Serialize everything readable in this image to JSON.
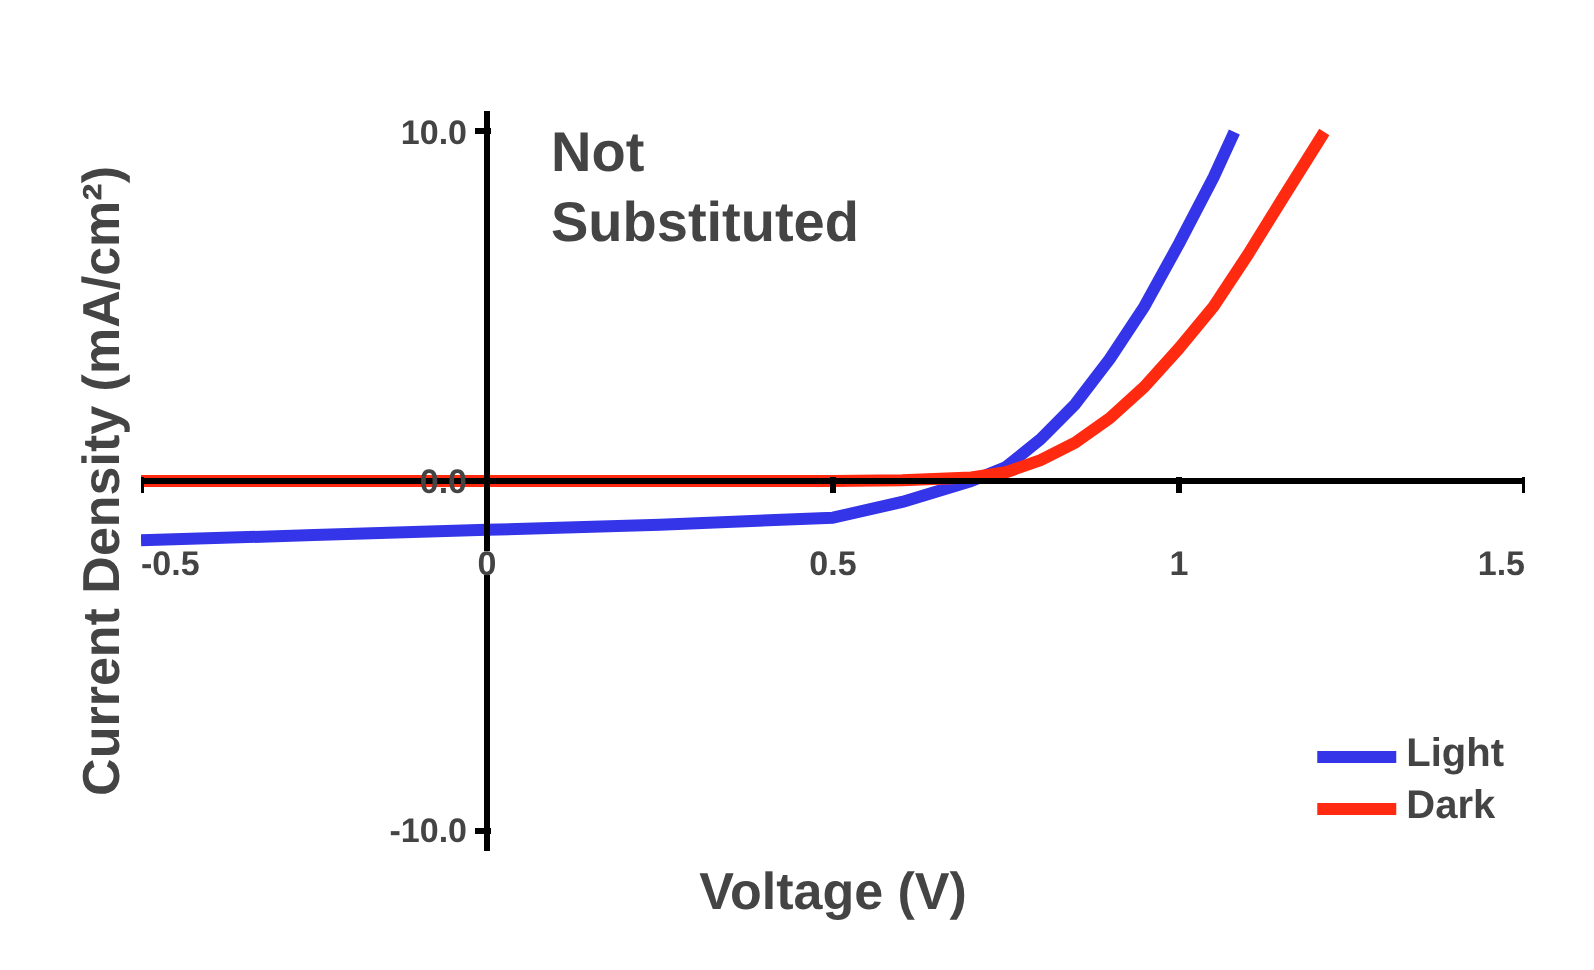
{
  "chart_data": {
    "type": "line",
    "title": "Not Substituted",
    "xlabel": "Voltage (V)",
    "ylabel": "Current Density (mA/cm²)",
    "xlim": [
      -0.5,
      1.5
    ],
    "ylim": [
      -10.6,
      10.6
    ],
    "xticks": [
      {
        "value": -0.5,
        "label": "-0.5"
      },
      0,
      0.5,
      1,
      1.5
    ],
    "yticks": [
      {
        "value": -10,
        "label": "-10.0"
      },
      {
        "value": 0,
        "label": "0.0"
      },
      {
        "value": 10,
        "label": "10.0"
      }
    ],
    "grid": false,
    "legend": "bottom right",
    "marker": "none",
    "line_style": "solid",
    "series": [
      {
        "name": "Light",
        "color": "#3434e8",
        "x": [
          -0.5,
          -0.25,
          0,
          0.25,
          0.5,
          0.6,
          0.65,
          0.7,
          0.75,
          0.8,
          0.85,
          0.9,
          0.95,
          1.0,
          1.05,
          1.08
        ],
        "values": [
          -1.7,
          -1.55,
          -1.4,
          -1.25,
          -1.05,
          -0.6,
          -0.3,
          0.0,
          0.4,
          1.2,
          2.2,
          3.5,
          5.0,
          6.8,
          8.7,
          10
        ]
      },
      {
        "name": "Dark",
        "color": "#ff2a10",
        "x": [
          -0.5,
          0,
          0.5,
          0.6,
          0.7,
          0.75,
          0.8,
          0.85,
          0.9,
          0.95,
          1.0,
          1.05,
          1.1,
          1.15,
          1.21
        ],
        "values": [
          0,
          0,
          0,
          0.02,
          0.1,
          0.25,
          0.6,
          1.1,
          1.8,
          2.7,
          3.8,
          5.0,
          6.5,
          8.1,
          10
        ]
      }
    ]
  }
}
